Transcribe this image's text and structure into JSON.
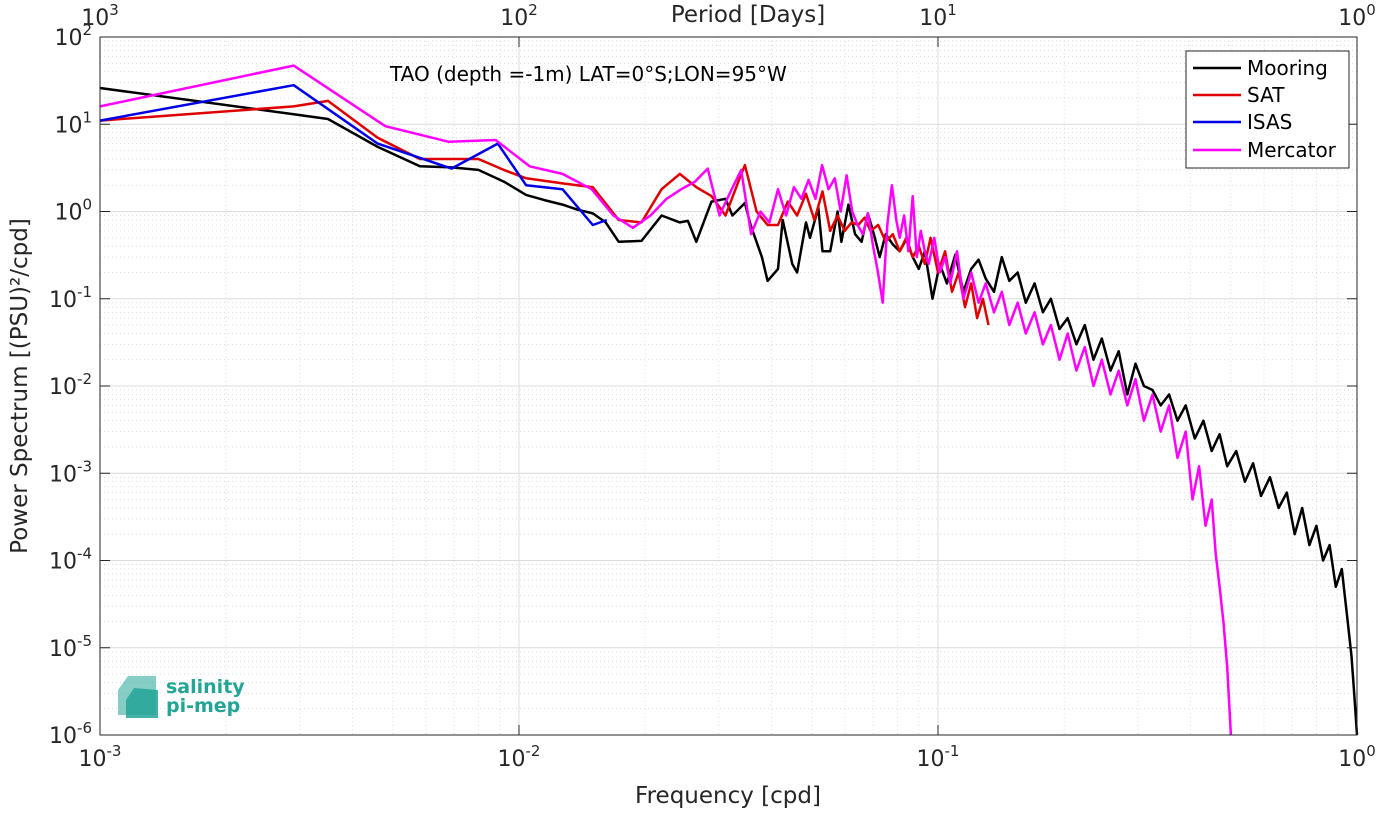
{
  "chart_data": {
    "type": "line",
    "title": "TAO (depth =-1m) LAT=0°S;LON=95°W",
    "xlabel": "Frequency [cpd]",
    "ylabel": "Power Spectrum [(PSU)²/cpd]",
    "top_xlabel": "Period [Days]",
    "xscale": "log",
    "yscale": "log",
    "xlim": [
      0.001,
      1
    ],
    "ylim": [
      1e-06,
      100
    ],
    "grid": true,
    "legend_position": "top-right",
    "x_ticks": [
      {
        "value": 0.001,
        "base": "10",
        "exp": "-3"
      },
      {
        "value": 0.01,
        "base": "10",
        "exp": "-2"
      },
      {
        "value": 0.1,
        "base": "10",
        "exp": "-1"
      },
      {
        "value": 1,
        "base": "10",
        "exp": "0"
      }
    ],
    "top_ticks": [
      {
        "value": 0.001,
        "base": "10",
        "exp": "3"
      },
      {
        "value": 0.01,
        "base": "10",
        "exp": "2"
      },
      {
        "value": 0.1,
        "base": "10",
        "exp": "1"
      },
      {
        "value": 1,
        "base": "10",
        "exp": "0"
      }
    ],
    "y_ticks": [
      {
        "value": 100,
        "base": "10",
        "exp": "2"
      },
      {
        "value": 10,
        "base": "10",
        "exp": "1"
      },
      {
        "value": 1,
        "base": "10",
        "exp": "0"
      },
      {
        "value": 0.1,
        "base": "10",
        "exp": "-1"
      },
      {
        "value": 0.01,
        "base": "10",
        "exp": "-2"
      },
      {
        "value": 0.001,
        "base": "10",
        "exp": "-3"
      },
      {
        "value": 0.0001,
        "base": "10",
        "exp": "-4"
      },
      {
        "value": 1e-05,
        "base": "10",
        "exp": "-5"
      },
      {
        "value": 1e-06,
        "base": "10",
        "exp": "-6"
      }
    ],
    "series": [
      {
        "name": "Mooring",
        "color": "#000000",
        "points": [
          [
            0.001,
            26
          ],
          [
            0.0029,
            13
          ],
          [
            0.0035,
            11.5
          ],
          [
            0.0046,
            5.5
          ],
          [
            0.0058,
            3.3
          ],
          [
            0.0069,
            3.2
          ],
          [
            0.008,
            3.0
          ],
          [
            0.0092,
            2.2
          ],
          [
            0.0104,
            1.55
          ],
          [
            0.0115,
            1.35
          ],
          [
            0.0127,
            1.2
          ],
          [
            0.0138,
            1.05
          ],
          [
            0.015,
            0.95
          ],
          [
            0.0161,
            0.75
          ],
          [
            0.0173,
            0.45
          ],
          [
            0.0196,
            0.46
          ],
          [
            0.0219,
            0.9
          ],
          [
            0.0242,
            0.75
          ],
          [
            0.0253,
            0.78
          ],
          [
            0.0265,
            0.45
          ],
          [
            0.0288,
            1.3
          ],
          [
            0.0311,
            1.4
          ],
          [
            0.0323,
            0.9
          ],
          [
            0.0346,
            1.25
          ],
          [
            0.0357,
            0.7
          ],
          [
            0.038,
            0.3
          ],
          [
            0.0392,
            0.16
          ],
          [
            0.0415,
            0.22
          ],
          [
            0.0426,
            0.8
          ],
          [
            0.0449,
            0.25
          ],
          [
            0.0461,
            0.2
          ],
          [
            0.0484,
            0.75
          ],
          [
            0.0495,
            0.5
          ],
          [
            0.0518,
            1.1
          ],
          [
            0.053,
            0.35
          ],
          [
            0.0553,
            0.35
          ],
          [
            0.0576,
            1.0
          ],
          [
            0.0588,
            0.45
          ],
          [
            0.0611,
            1.2
          ],
          [
            0.0634,
            0.55
          ],
          [
            0.0657,
            0.45
          ],
          [
            0.068,
            0.95
          ],
          [
            0.0703,
            0.55
          ],
          [
            0.0726,
            0.3
          ],
          [
            0.075,
            0.55
          ],
          [
            0.078,
            0.42
          ],
          [
            0.081,
            0.35
          ],
          [
            0.084,
            0.48
          ],
          [
            0.087,
            0.3
          ],
          [
            0.09,
            0.22
          ],
          [
            0.093,
            0.35
          ],
          [
            0.097,
            0.1
          ],
          [
            0.101,
            0.25
          ],
          [
            0.105,
            0.15
          ],
          [
            0.11,
            0.32
          ],
          [
            0.115,
            0.12
          ],
          [
            0.12,
            0.22
          ],
          [
            0.125,
            0.28
          ],
          [
            0.13,
            0.17
          ],
          [
            0.136,
            0.12
          ],
          [
            0.142,
            0.3
          ],
          [
            0.148,
            0.16
          ],
          [
            0.155,
            0.2
          ],
          [
            0.162,
            0.09
          ],
          [
            0.17,
            0.15
          ],
          [
            0.178,
            0.07
          ],
          [
            0.186,
            0.1
          ],
          [
            0.195,
            0.045
          ],
          [
            0.204,
            0.06
          ],
          [
            0.214,
            0.03
          ],
          [
            0.224,
            0.05
          ],
          [
            0.235,
            0.02
          ],
          [
            0.246,
            0.035
          ],
          [
            0.258,
            0.015
          ],
          [
            0.27,
            0.025
          ],
          [
            0.283,
            0.008
          ],
          [
            0.296,
            0.018
          ],
          [
            0.31,
            0.01
          ],
          [
            0.325,
            0.009
          ],
          [
            0.34,
            0.006
          ],
          [
            0.356,
            0.008
          ],
          [
            0.373,
            0.004
          ],
          [
            0.39,
            0.006
          ],
          [
            0.41,
            0.0025
          ],
          [
            0.43,
            0.004
          ],
          [
            0.45,
            0.0018
          ],
          [
            0.47,
            0.0028
          ],
          [
            0.49,
            0.0012
          ],
          [
            0.515,
            0.0018
          ],
          [
            0.54,
            0.0008
          ],
          [
            0.565,
            0.0013
          ],
          [
            0.59,
            0.00055
          ],
          [
            0.62,
            0.0009
          ],
          [
            0.65,
            0.0004
          ],
          [
            0.68,
            0.0006
          ],
          [
            0.71,
            0.0002
          ],
          [
            0.74,
            0.0004
          ],
          [
            0.77,
            0.00015
          ],
          [
            0.8,
            0.00025
          ],
          [
            0.83,
            0.0001
          ],
          [
            0.86,
            0.00015
          ],
          [
            0.89,
            5e-05
          ],
          [
            0.92,
            8e-05
          ],
          [
            0.95,
            2e-05
          ],
          [
            0.97,
            8e-06
          ],
          [
            0.985,
            3e-06
          ],
          [
            1.0,
            1e-06
          ]
        ]
      },
      {
        "name": "SAT",
        "color": "#e00000",
        "points": [
          [
            0.001,
            11
          ],
          [
            0.0029,
            16
          ],
          [
            0.0035,
            18.5
          ],
          [
            0.0046,
            7
          ],
          [
            0.0058,
            4
          ],
          [
            0.0069,
            4
          ],
          [
            0.008,
            4
          ],
          [
            0.0092,
            3
          ],
          [
            0.0104,
            2.4
          ],
          [
            0.0127,
            2.1
          ],
          [
            0.015,
            1.9
          ],
          [
            0.0173,
            0.8
          ],
          [
            0.0196,
            0.75
          ],
          [
            0.0219,
            1.8
          ],
          [
            0.0242,
            2.7
          ],
          [
            0.0265,
            1.9
          ],
          [
            0.0288,
            1.5
          ],
          [
            0.0311,
            0.9
          ],
          [
            0.0334,
            2.2
          ],
          [
            0.0346,
            3.4
          ],
          [
            0.0369,
            1.0
          ],
          [
            0.0392,
            0.7
          ],
          [
            0.0415,
            0.7
          ],
          [
            0.0438,
            1.3
          ],
          [
            0.0461,
            0.9
          ],
          [
            0.0484,
            1.6
          ],
          [
            0.0507,
            0.8
          ],
          [
            0.053,
            1.7
          ],
          [
            0.0553,
            0.6
          ],
          [
            0.0576,
            0.9
          ],
          [
            0.0599,
            0.6
          ],
          [
            0.0622,
            0.75
          ],
          [
            0.0645,
            0.7
          ],
          [
            0.0668,
            0.85
          ],
          [
            0.069,
            0.6
          ],
          [
            0.072,
            0.7
          ],
          [
            0.075,
            0.45
          ],
          [
            0.078,
            0.55
          ],
          [
            0.081,
            0.35
          ],
          [
            0.084,
            0.5
          ],
          [
            0.087,
            0.3
          ],
          [
            0.09,
            0.4
          ],
          [
            0.093,
            0.25
          ],
          [
            0.096,
            0.5
          ],
          [
            0.1,
            0.2
          ],
          [
            0.104,
            0.35
          ],
          [
            0.108,
            0.12
          ],
          [
            0.112,
            0.2
          ],
          [
            0.116,
            0.08
          ],
          [
            0.12,
            0.15
          ],
          [
            0.124,
            0.06
          ],
          [
            0.128,
            0.1
          ],
          [
            0.132,
            0.05
          ]
        ]
      },
      {
        "name": "ISAS",
        "color": "#0000e6",
        "points": [
          [
            0.001,
            11
          ],
          [
            0.0029,
            28
          ],
          [
            0.0046,
            6
          ],
          [
            0.0069,
            3.1
          ],
          [
            0.0089,
            6
          ],
          [
            0.0104,
            2
          ],
          [
            0.0127,
            1.8
          ],
          [
            0.015,
            0.7
          ],
          [
            0.0162,
            0.8
          ]
        ]
      },
      {
        "name": "Mercator",
        "color": "#ff00ff",
        "points": [
          [
            0.001,
            16
          ],
          [
            0.0029,
            47
          ],
          [
            0.0048,
            9.5
          ],
          [
            0.0068,
            6.3
          ],
          [
            0.0088,
            6.6
          ],
          [
            0.0106,
            3.3
          ],
          [
            0.0127,
            2.7
          ],
          [
            0.0149,
            1.8
          ],
          [
            0.0168,
            0.9
          ],
          [
            0.0187,
            0.65
          ],
          [
            0.0206,
            0.9
          ],
          [
            0.0225,
            1.4
          ],
          [
            0.0244,
            1.8
          ],
          [
            0.0263,
            2.2
          ],
          [
            0.0282,
            3.1
          ],
          [
            0.0301,
            0.9
          ],
          [
            0.032,
            1.7
          ],
          [
            0.0339,
            3.0
          ],
          [
            0.0358,
            0.55
          ],
          [
            0.0377,
            1.0
          ],
          [
            0.0396,
            0.75
          ],
          [
            0.0415,
            1.8
          ],
          [
            0.0434,
            0.9
          ],
          [
            0.0453,
            1.9
          ],
          [
            0.0472,
            1.4
          ],
          [
            0.0491,
            2.3
          ],
          [
            0.051,
            1.4
          ],
          [
            0.0529,
            3.4
          ],
          [
            0.0548,
            1.8
          ],
          [
            0.0567,
            2.4
          ],
          [
            0.0586,
            1.0
          ],
          [
            0.0605,
            2.6
          ],
          [
            0.0624,
            1.0
          ],
          [
            0.0643,
            0.7
          ],
          [
            0.0662,
            0.55
          ],
          [
            0.0681,
            0.95
          ],
          [
            0.07,
            0.4
          ],
          [
            0.0719,
            0.2
          ],
          [
            0.0738,
            0.09
          ],
          [
            0.0757,
            0.7
          ],
          [
            0.0776,
            2.0
          ],
          [
            0.0795,
            0.8
          ],
          [
            0.081,
            0.5
          ],
          [
            0.083,
            0.9
          ],
          [
            0.085,
            0.35
          ],
          [
            0.087,
            1.5
          ],
          [
            0.089,
            0.3
          ],
          [
            0.091,
            0.6
          ],
          [
            0.093,
            0.35
          ],
          [
            0.095,
            0.25
          ],
          [
            0.098,
            0.5
          ],
          [
            0.101,
            0.2
          ],
          [
            0.104,
            0.3
          ],
          [
            0.107,
            0.15
          ],
          [
            0.111,
            0.35
          ],
          [
            0.115,
            0.1
          ],
          [
            0.12,
            0.2
          ],
          [
            0.125,
            0.09
          ],
          [
            0.13,
            0.15
          ],
          [
            0.136,
            0.07
          ],
          [
            0.142,
            0.12
          ],
          [
            0.148,
            0.05
          ],
          [
            0.155,
            0.09
          ],
          [
            0.162,
            0.04
          ],
          [
            0.17,
            0.07
          ],
          [
            0.178,
            0.03
          ],
          [
            0.186,
            0.05
          ],
          [
            0.195,
            0.02
          ],
          [
            0.204,
            0.04
          ],
          [
            0.214,
            0.015
          ],
          [
            0.224,
            0.028
          ],
          [
            0.235,
            0.01
          ],
          [
            0.246,
            0.02
          ],
          [
            0.258,
            0.008
          ],
          [
            0.27,
            0.015
          ],
          [
            0.283,
            0.006
          ],
          [
            0.296,
            0.012
          ],
          [
            0.31,
            0.004
          ],
          [
            0.325,
            0.008
          ],
          [
            0.34,
            0.003
          ],
          [
            0.356,
            0.006
          ],
          [
            0.373,
            0.0015
          ],
          [
            0.39,
            0.003
          ],
          [
            0.405,
            0.0005
          ],
          [
            0.42,
            0.0012
          ],
          [
            0.435,
            0.00025
          ],
          [
            0.45,
            0.0005
          ],
          [
            0.46,
            0.00012
          ],
          [
            0.47,
            5e-05
          ],
          [
            0.48,
            2e-05
          ],
          [
            0.49,
            6e-06
          ],
          [
            0.5,
            1e-06
          ]
        ]
      }
    ]
  },
  "logo": {
    "line1": "salinity",
    "line2": "pi-mep",
    "color": "#23a596"
  }
}
